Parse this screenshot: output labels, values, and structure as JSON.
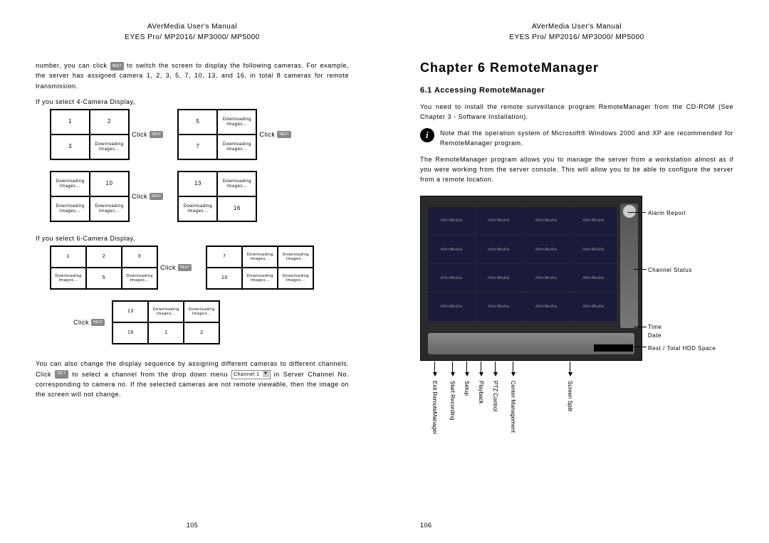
{
  "header": {
    "line1": "AVerMedia User's Manual",
    "line2": "EYES Pro/ MP2016/ MP3000/ MP5000"
  },
  "left_page": {
    "para1_a": "number, you can click ",
    "para1_b": " to switch the screen to display the following cameras.  For example, the server has assigned camera 1, 2, 3, 5, 7, 10, 13, and 16, in total 8 cameras for remote transmission.",
    "label_4cam": "If you select 4-Camera Display,",
    "label_6cam": "If you select 6-Camera Display,",
    "click": "Click",
    "next": "NEXT",
    "dl": "Downloading Images…",
    "grid4_a": [
      "1",
      "2",
      "3",
      "dl"
    ],
    "grid4_b": [
      "5",
      "dl",
      "7",
      "dl"
    ],
    "grid4_c": [
      "dl",
      "10",
      "dl",
      "dl"
    ],
    "grid4_d": [
      "13",
      "dl",
      "dl",
      "16"
    ],
    "grid6_a": [
      "1",
      "2",
      "3",
      "dl",
      "5",
      "dl"
    ],
    "grid6_b": [
      "7",
      "dl",
      "dl",
      "10",
      "dl",
      "dl"
    ],
    "grid6_c": [
      "13",
      "dl",
      "dl",
      "16",
      "1",
      "2"
    ],
    "para2_a": "You can also change the display sequence by assigning different cameras to different channels.  Click ",
    "para2_b": " to select a channel from the drop down menu ",
    "para2_c": " in Server Channel No. corresponding to camera no.  If the selected cameras are not remote viewable, then the image on the screen will not change.",
    "set": "SET",
    "channel_dd": "Channel 1",
    "page_num": "105"
  },
  "right_page": {
    "chapter": "Chapter 6 RemoteManager",
    "sub": "6.1 Accessing RemoteManager",
    "para1": "You need to install the remote surveillance program RemoteManager from the CD-ROM (See Chapter 3 - Software Installation).",
    "note": "Note that the operation system of Microsoft® Windows 2000 and XP are recommended for RemoteManager program.",
    "para2": "The RemoteManager program allows you to manage the server from a workstation almost as if you were working from the server console. This will allow you to be able to configure the server from a remote location.",
    "brand": "AVerMedia",
    "annot_right": {
      "alarm": "Alarm Report",
      "channel": "Channel Status",
      "time": "Time",
      "date": "Date",
      "rest": "Rest / Total HDD Space"
    },
    "annot_bottom": [
      "Exit RemoteManager",
      "Start Recording",
      "Setup",
      "Playback",
      "PTZ Control",
      "Center Management",
      "Screen Split"
    ],
    "page_num": "106"
  }
}
